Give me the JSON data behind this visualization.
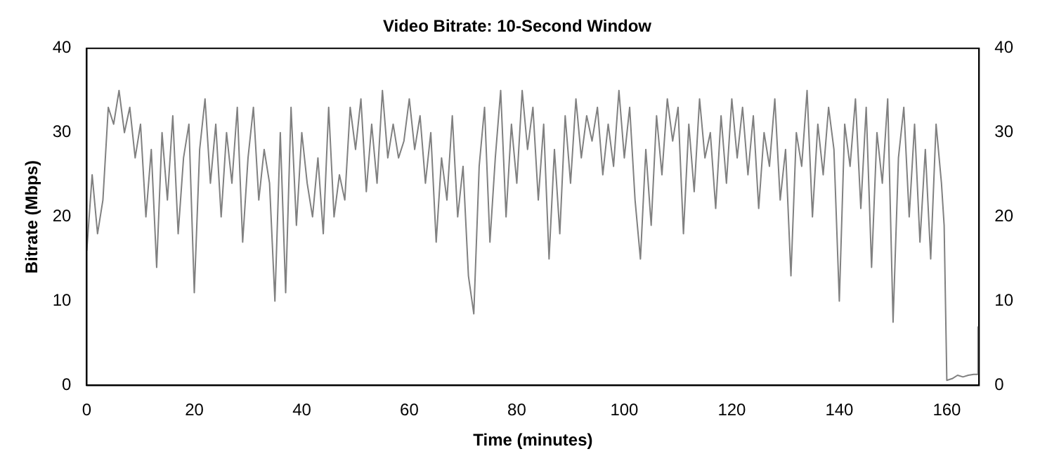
{
  "chart_data": {
    "type": "line",
    "title": "Video Bitrate: 10-Second Window",
    "xlabel": "Time (minutes)",
    "ylabel": "Bitrate (Mbps)",
    "x": [
      0,
      1,
      2,
      3,
      4,
      5,
      6,
      7,
      8,
      9,
      10,
      11,
      12,
      13,
      14,
      15,
      16,
      17,
      18,
      19,
      20,
      21,
      22,
      23,
      24,
      25,
      26,
      27,
      28,
      29,
      30,
      31,
      32,
      33,
      34,
      35,
      36,
      37,
      38,
      39,
      40,
      41,
      42,
      43,
      44,
      45,
      46,
      47,
      48,
      49,
      50,
      51,
      52,
      53,
      54,
      55,
      56,
      57,
      58,
      59,
      60,
      61,
      62,
      63,
      64,
      65,
      66,
      67,
      68,
      69,
      70,
      71,
      72,
      73,
      74,
      75,
      76,
      77,
      78,
      79,
      80,
      81,
      82,
      83,
      84,
      85,
      86,
      87,
      88,
      89,
      90,
      91,
      92,
      93,
      94,
      95,
      96,
      97,
      98,
      99,
      100,
      101,
      102,
      103,
      104,
      105,
      106,
      107,
      108,
      109,
      110,
      111,
      112,
      113,
      114,
      115,
      116,
      117,
      118,
      119,
      120,
      121,
      122,
      123,
      124,
      125,
      126,
      127,
      128,
      129,
      130,
      131,
      132,
      133,
      134,
      135,
      136,
      137,
      138,
      139,
      140,
      141,
      142,
      143,
      144,
      145,
      146,
      147,
      148,
      149,
      150,
      151,
      152,
      153,
      154,
      155,
      156,
      157,
      158,
      159,
      159.5,
      160,
      161,
      162,
      163,
      164,
      165,
      165.6,
      165.8
    ],
    "series": [
      {
        "color": "#808080",
        "values": [
          16,
          25,
          18,
          22,
          33,
          31,
          35,
          30,
          33,
          27,
          31,
          20,
          28,
          14,
          30,
          22,
          32,
          18,
          27,
          31,
          11,
          28,
          34,
          24,
          31,
          20,
          30,
          24,
          33,
          17,
          27,
          33,
          22,
          28,
          24,
          10,
          30,
          11,
          33,
          19,
          30,
          24,
          20,
          27,
          18,
          33,
          20,
          25,
          22,
          33,
          28,
          34,
          23,
          31,
          24,
          35,
          27,
          31,
          27,
          29,
          34,
          28,
          32,
          24,
          30,
          17,
          27,
          22,
          32,
          20,
          26,
          13,
          8.5,
          26,
          33,
          17,
          27,
          35,
          20,
          31,
          24,
          35,
          28,
          33,
          22,
          31,
          15,
          28,
          18,
          32,
          24,
          34,
          27,
          32,
          29,
          33,
          25,
          31,
          26,
          35,
          27,
          33,
          22,
          15,
          28,
          19,
          32,
          25,
          34,
          29,
          33,
          18,
          31,
          23,
          34,
          27,
          30,
          21,
          32,
          24,
          34,
          27,
          33,
          25,
          32,
          21,
          30,
          26,
          34,
          22,
          28,
          13,
          30,
          26,
          35,
          20,
          31,
          25,
          33,
          28,
          10,
          31,
          26,
          34,
          21,
          33,
          14,
          30,
          24,
          34,
          7.5,
          27,
          33,
          20,
          31,
          17,
          28,
          15,
          31,
          24,
          19,
          0.6,
          0.8,
          1.2,
          1,
          1.2,
          1.3,
          1.3,
          7
        ]
      }
    ],
    "xlim": [
      0,
      166
    ],
    "xticks": [
      0,
      20,
      40,
      60,
      80,
      100,
      120,
      140,
      160
    ],
    "ylim": [
      0,
      40
    ],
    "yticks": [
      0,
      10,
      20,
      30,
      40
    ],
    "y2lim": [
      0,
      40
    ],
    "y2ticks": [
      0,
      10,
      20,
      30,
      40
    ],
    "grid": false,
    "legend": false,
    "marker": "none",
    "line_style": "solid"
  }
}
